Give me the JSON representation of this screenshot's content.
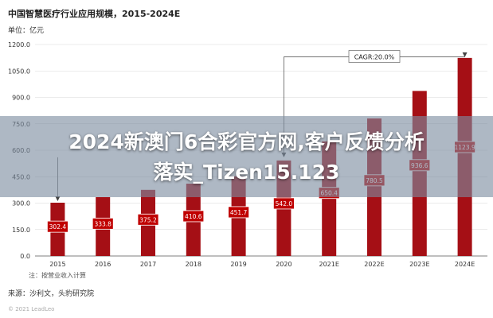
{
  "chart_data": {
    "type": "bar",
    "title": "中国智慧医疗行业应用规模，2015-2024E",
    "unit_label": "单位：亿元",
    "categories": [
      "2015",
      "2016",
      "2017",
      "2018",
      "2019",
      "2020",
      "2021E",
      "2022E",
      "2023E",
      "2024E"
    ],
    "values": [
      302.4,
      333.8,
      375.2,
      410.6,
      451.7,
      542.0,
      650.4,
      780.5,
      936.6,
      1123.9
    ],
    "ylim": [
      0,
      1200
    ],
    "yticks": [
      "0.0",
      "150.0",
      "300.0",
      "450.0",
      "600.0",
      "750.0",
      "900.0",
      "1050.0",
      "1200.0"
    ],
    "annotation": "CAGR:20.0%",
    "note": "注：按营业收入计算",
    "source": "来源：沙利文，头豹研究院",
    "watermark": "© 2021 LeadLeo",
    "bar_color": "#a50f15",
    "label_box_color": "#c00000"
  },
  "overlay": {
    "line1": "2024新澳门6合彩官方网,客户反馈分析",
    "line2": "落实_Tizen15.123"
  }
}
